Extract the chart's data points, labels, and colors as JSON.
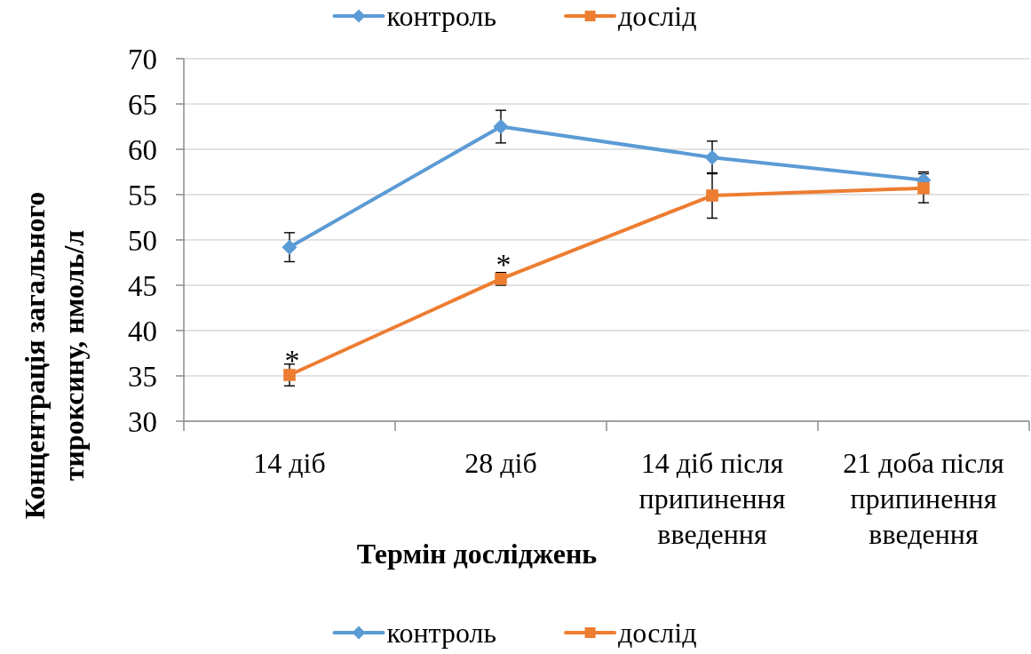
{
  "chart_data": {
    "type": "line",
    "categories": [
      "14 діб",
      "28 діб",
      "14 діб після припинення введення",
      "21 доба після припинення введення"
    ],
    "series": [
      {
        "name": "контроль",
        "color": "#5b9bd5",
        "marker": "diamond",
        "values": [
          49.2,
          62.5,
          59.1,
          56.6
        ],
        "errors": [
          1.6,
          1.8,
          1.8,
          0.9
        ]
      },
      {
        "name": "дослід",
        "color": "#ed7d31",
        "marker": "square",
        "values": [
          35.1,
          45.7,
          54.9,
          55.7
        ],
        "errors": [
          1.2,
          0.7,
          2.5,
          1.6
        ]
      }
    ],
    "xlabel": "Термін досліджень",
    "ylabel": "Концентрація загального тироксину, нмоль/л",
    "ylim": [
      30,
      70
    ],
    "yticks": [
      30,
      35,
      40,
      45,
      50,
      55,
      60,
      65,
      70
    ],
    "grid": "y",
    "legend": [
      "top",
      "bottom"
    ],
    "annotations": [
      {
        "text": "*",
        "x": "14 діб",
        "y": 35.1
      },
      {
        "text": "*",
        "x": "28 діб",
        "y": 45.7
      }
    ]
  }
}
